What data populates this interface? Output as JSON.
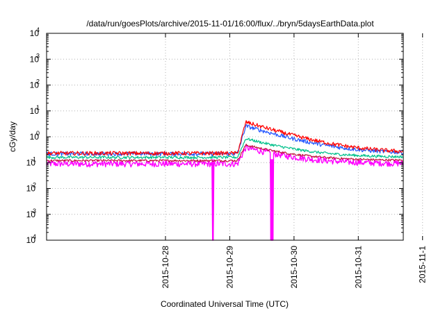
{
  "chart_data": {
    "type": "line",
    "title": "/data/run/goesPlots/archive/2015-11-01/16:00/flux/../bryn/5daysEarthData.plot",
    "xlabel": "Coordinated Universal Time (UTC)",
    "ylabel": "cGy/day",
    "y_scale": "log",
    "ylim": [
      0.0001,
      10000
    ],
    "xlim_days": [
      -1.85,
      3.7
    ],
    "grid": true,
    "legend": "none",
    "x_ticks": [
      {
        "label": "2015-10-28",
        "day": 0
      },
      {
        "label": "2015-10-29",
        "day": 1
      },
      {
        "label": "2015-10-30",
        "day": 2
      },
      {
        "label": "2015-10-31",
        "day": 3
      },
      {
        "label": "2015-11-1",
        "day": 4
      }
    ],
    "y_ticks": [
      {
        "mantissa": "10",
        "exp": "-4",
        "value": 0.0001
      },
      {
        "mantissa": "10",
        "exp": "-3",
        "value": 0.001
      },
      {
        "mantissa": "10",
        "exp": "-2",
        "value": 0.01
      },
      {
        "mantissa": "10",
        "exp": "-1",
        "value": 0.1
      },
      {
        "mantissa": "10",
        "exp": "0",
        "value": 1
      },
      {
        "mantissa": "10",
        "exp": "1",
        "value": 10
      },
      {
        "mantissa": "10",
        "exp": "2",
        "value": 100
      },
      {
        "mantissa": "10",
        "exp": "3",
        "value": 1000
      },
      {
        "mantissa": "10",
        "exp": "4",
        "value": 10000
      }
    ],
    "series": [
      {
        "color": "#ff00ff",
        "base": 0.09,
        "noise": 0.35,
        "peak": 0.38,
        "dropouts": [
          {
            "start": 0.73,
            "end": 0.75
          },
          {
            "start": 1.63,
            "end": 1.68
          }
        ]
      },
      {
        "color": "#c0143c",
        "base": 0.12,
        "noise": 0.12,
        "peak": 0.48,
        "dropouts": []
      },
      {
        "color": "#00c08a",
        "base": 0.16,
        "noise": 0.15,
        "peak": 0.85,
        "dropouts": []
      },
      {
        "color": "#2255ff",
        "base": 0.22,
        "noise": 0.22,
        "peak": 2.6,
        "dropouts": []
      },
      {
        "color": "#ff0000",
        "base": 0.23,
        "noise": 0.22,
        "peak": 3.7,
        "dropouts": []
      }
    ],
    "event": {
      "rise_start": 1.12,
      "peak_time": 1.25,
      "decay_days": 0.55
    }
  }
}
